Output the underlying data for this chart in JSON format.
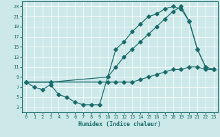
{
  "xlabel": "Humidex (Indice chaleur)",
  "background_color": "#cce8e8",
  "line_color": "#1a6b6b",
  "grid_color": "#ffffff",
  "xlim": [
    -0.5,
    23.5
  ],
  "ylim": [
    2.0,
    24.0
  ],
  "xticks": [
    0,
    1,
    2,
    3,
    4,
    5,
    6,
    7,
    8,
    9,
    10,
    11,
    12,
    13,
    14,
    15,
    16,
    17,
    18,
    19,
    20,
    21,
    22,
    23
  ],
  "yticks": [
    3,
    5,
    7,
    9,
    11,
    13,
    15,
    17,
    19,
    21,
    23
  ],
  "line1_x": [
    0,
    1,
    2,
    3,
    4,
    5,
    6,
    7,
    8,
    9,
    10,
    11,
    12,
    13,
    14,
    15,
    16,
    17,
    18,
    19,
    20,
    21,
    22,
    23
  ],
  "line1_y": [
    8,
    7,
    6.5,
    7.5,
    5.5,
    5,
    4,
    3.5,
    3.5,
    3.5,
    9,
    14.5,
    16,
    18,
    19.5,
    21,
    21.5,
    22.5,
    23,
    22.5,
    20,
    14.5,
    11,
    10.5
  ],
  "line2_x": [
    0,
    3,
    10,
    11,
    12,
    13,
    14,
    15,
    16,
    17,
    18,
    19,
    20,
    21,
    22,
    23
  ],
  "line2_y": [
    8,
    8,
    9,
    11,
    13,
    14.5,
    16,
    17.5,
    19,
    20.5,
    22,
    23,
    20,
    14.5,
    11,
    10.5
  ],
  "line3_x": [
    0,
    3,
    9,
    10,
    11,
    12,
    13,
    14,
    15,
    16,
    17,
    18,
    19,
    20,
    21,
    22,
    23
  ],
  "line3_y": [
    8,
    8,
    8,
    8,
    8,
    8,
    8,
    8.5,
    9,
    9.5,
    10,
    10.5,
    10.5,
    11,
    11,
    10.5,
    10.5
  ],
  "xlabel_fontsize": 6,
  "tick_fontsize": 5
}
